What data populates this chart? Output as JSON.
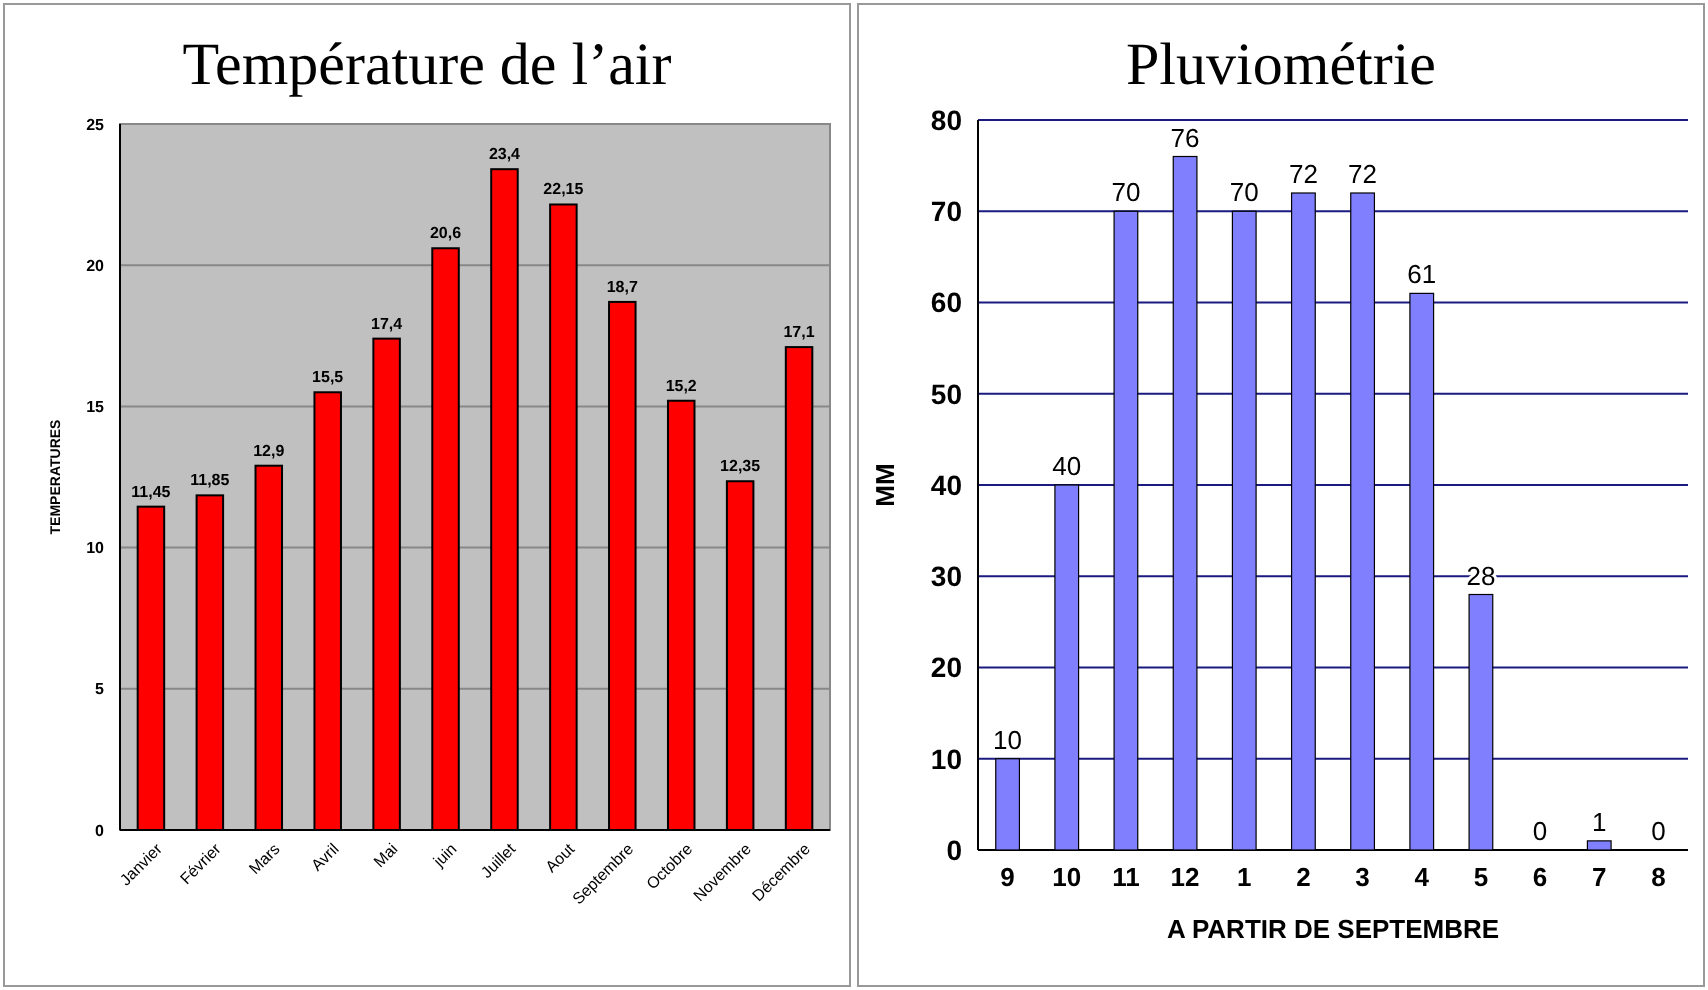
{
  "chart_data": [
    {
      "type": "bar",
      "title": "Température de l’air",
      "ylabel": "TEMPERATURES",
      "categories": [
        "Janvier",
        "Février",
        "Mars",
        "Avril",
        "Mai",
        "juin",
        "Juillet",
        "Aout",
        "Septembre",
        "Octobre",
        "Novembre",
        "Décembre"
      ],
      "values": [
        11.45,
        11.85,
        12.9,
        15.5,
        17.4,
        20.6,
        23.4,
        22.15,
        18.7,
        15.2,
        12.35,
        17.1
      ],
      "value_labels": [
        "11,45",
        "11,85",
        "12,9",
        "15,5",
        "17,4",
        "20,6",
        "23,4",
        "22,15",
        "18,7",
        "15,2",
        "12,35",
        "17,1"
      ],
      "color": "#ff0000",
      "ylim": [
        0,
        25
      ],
      "yticks": [
        0,
        5,
        10,
        15,
        20,
        25
      ],
      "grid": "y"
    },
    {
      "type": "bar",
      "title": "Pluviométrie",
      "ylabel": "MM",
      "xlabel": "A PARTIR DE SEPTEMBRE",
      "categories": [
        "9",
        "10",
        "11",
        "12",
        "1",
        "2",
        "3",
        "4",
        "5",
        "6",
        "7",
        "8"
      ],
      "values": [
        10,
        40,
        70,
        76,
        70,
        72,
        72,
        61,
        28,
        0,
        1,
        0
      ],
      "color": "#8080ff",
      "ylim": [
        0,
        80
      ],
      "yticks": [
        0,
        10,
        20,
        30,
        40,
        50,
        60,
        70,
        80
      ],
      "grid": "y",
      "data_labels": true
    }
  ]
}
